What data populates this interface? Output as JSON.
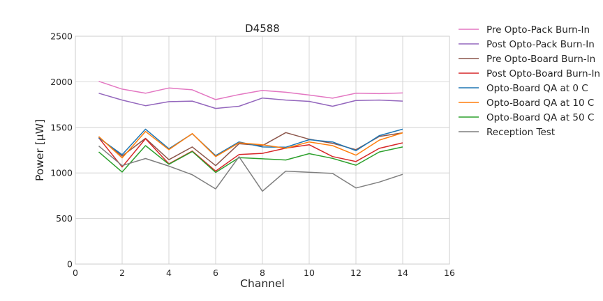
{
  "chart_data": {
    "type": "line",
    "title": "D4588",
    "xlabel": "Channel",
    "ylabel": "Power [μW]",
    "xlim": [
      0,
      16
    ],
    "ylim": [
      0,
      2500
    ],
    "xticks": [
      "0",
      "2",
      "4",
      "6",
      "8",
      "10",
      "12",
      "14",
      "16"
    ],
    "yticks": [
      "0",
      "500",
      "1000",
      "1500",
      "2000",
      "2500"
    ],
    "grid": true,
    "legend_position": "outside-right",
    "x": [
      1,
      2,
      3,
      4,
      5,
      6,
      7,
      8,
      9,
      10,
      11,
      12,
      13,
      14
    ],
    "series": [
      {
        "name": "Pre Opto-Pack Burn-In",
        "color": "#e377c2",
        "values": [
          2005,
          1920,
          1875,
          1932,
          1912,
          1805,
          1860,
          1905,
          1885,
          1855,
          1820,
          1875,
          1870,
          1878
        ]
      },
      {
        "name": "Post Opto-Pack Burn-In",
        "color": "#9467bd",
        "values": [
          1875,
          1800,
          1738,
          1782,
          1788,
          1708,
          1732,
          1822,
          1800,
          1785,
          1732,
          1795,
          1800,
          1788
        ]
      },
      {
        "name": "Pre Opto-Board Burn-In",
        "color": "#8c564b",
        "values": [
          1390,
          1185,
          1380,
          1145,
          1285,
          1080,
          1320,
          1300,
          1443,
          1370,
          1325,
          1255,
          1400,
          1440
        ]
      },
      {
        "name": "Post Opto-Board Burn-In",
        "color": "#d62728",
        "values": [
          1385,
          1065,
          1375,
          1100,
          1240,
          1020,
          1202,
          1215,
          1272,
          1310,
          1180,
          1125,
          1270,
          1330
        ]
      },
      {
        "name": "Opto-Board QA at 0 C",
        "color": "#1f77b4",
        "values": [
          1385,
          1200,
          1480,
          1265,
          1430,
          1190,
          1340,
          1285,
          1282,
          1365,
          1340,
          1245,
          1410,
          1480
        ]
      },
      {
        "name": "Opto-Board QA at 10 C",
        "color": "#ff7f0e",
        "values": [
          1400,
          1165,
          1455,
          1255,
          1432,
          1180,
          1330,
          1310,
          1270,
          1340,
          1300,
          1195,
          1360,
          1440
        ]
      },
      {
        "name": "Opto-Board QA at 50 C",
        "color": "#2ca02c",
        "values": [
          1230,
          1010,
          1300,
          1095,
          1235,
          1005,
          1168,
          1155,
          1142,
          1212,
          1160,
          1085,
          1230,
          1285
        ]
      },
      {
        "name": "Reception Test",
        "color": "#7f7f7f",
        "values": [
          1295,
          1080,
          1158,
          1075,
          980,
          825,
          1178,
          800,
          1020,
          1008,
          995,
          835,
          900,
          985
        ]
      }
    ]
  }
}
